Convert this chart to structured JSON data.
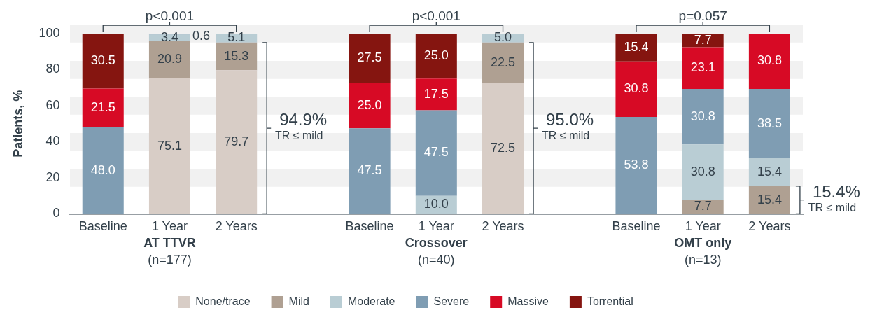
{
  "chart_data": {
    "type": "bar",
    "stacked": true,
    "ylabel": "Patients, %",
    "categories": [
      "Baseline",
      "1 Year",
      "2 Years",
      null,
      "Baseline",
      "1 Year",
      "2 Years",
      null,
      "Baseline",
      "1 Year",
      "2 Years"
    ],
    "series": [
      {
        "name": "None/trace",
        "color": "#d8cdc6",
        "values": [
          null,
          75.1,
          79.7,
          null,
          null,
          null,
          72.5,
          null,
          null,
          null,
          null
        ],
        "value_labels": [
          null,
          "75.1",
          "79.7",
          null,
          null,
          null,
          "72.5",
          null,
          null,
          null,
          null
        ]
      },
      {
        "name": "Mild",
        "color": "#afa092",
        "values": [
          null,
          20.9,
          15.3,
          null,
          null,
          null,
          22.5,
          null,
          null,
          7.7,
          15.4
        ],
        "value_labels": [
          null,
          "20.9",
          "15.3",
          null,
          null,
          null,
          "22.5",
          null,
          null,
          "7.7",
          "15.4"
        ]
      },
      {
        "name": "Moderate",
        "color": "#b9cdd4",
        "values": [
          null,
          3.4,
          5.1,
          null,
          null,
          10.0,
          5.0,
          null,
          null,
          30.8,
          15.4
        ],
        "value_labels": [
          null,
          "3.4",
          "5.1",
          null,
          null,
          "10.0",
          "5.0",
          null,
          null,
          "30.8",
          "15.4"
        ]
      },
      {
        "name": "Severe",
        "color": "#7f9db3",
        "values": [
          48.0,
          0.6,
          null,
          null,
          47.5,
          47.5,
          null,
          null,
          53.8,
          30.8,
          38.5
        ],
        "value_labels": [
          "48.0",
          "0.6",
          null,
          null,
          "47.5",
          "47.5",
          null,
          null,
          "53.8",
          "30.8",
          "38.5"
        ]
      },
      {
        "name": "Massive",
        "color": "#d70a25",
        "values": [
          21.5,
          null,
          null,
          null,
          25.0,
          17.5,
          null,
          null,
          30.8,
          23.1,
          30.8
        ],
        "value_labels": [
          "21.5",
          null,
          null,
          null,
          "25.0",
          "17.5",
          null,
          null,
          "30.8",
          "23.1",
          "30.8"
        ]
      },
      {
        "name": "Torrential",
        "color": "#851510",
        "values": [
          30.5,
          null,
          null,
          null,
          27.5,
          25.0,
          null,
          null,
          15.4,
          7.7,
          null
        ],
        "value_labels": [
          "30.5",
          null,
          null,
          null,
          "27.5",
          "25.0",
          null,
          null,
          "15.4",
          "7.7",
          null
        ]
      }
    ],
    "ylim": [
      0,
      100
    ],
    "yticks": [
      0,
      20,
      40,
      60,
      80,
      100
    ],
    "grid": "y",
    "legend": "bottom",
    "annotations": [
      "p<0.001",
      "p<0.001",
      "p=0.057",
      "94.9%",
      "95.0%",
      "15.4%",
      "TR ≤ mild",
      "TR ≤ mild",
      "TR ≤ mild",
      "AT TTVR",
      "Crossover",
      "OMT only",
      "(n=177)",
      "(n=40)",
      "(n=13)"
    ]
  }
}
